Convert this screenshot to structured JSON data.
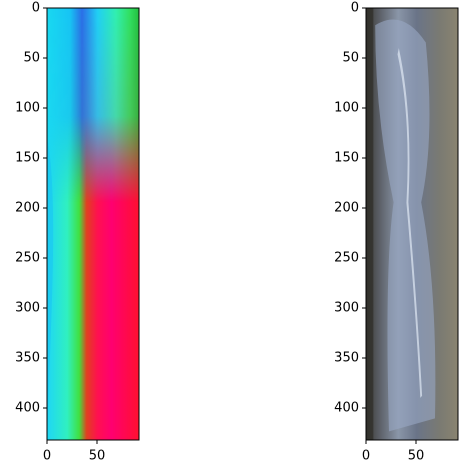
{
  "chart_data": [
    {
      "type": "image",
      "xlim": [
        0,
        92
      ],
      "ylim": [
        432,
        0
      ],
      "xticks": [
        0,
        50
      ],
      "yticks": [
        0,
        50,
        100,
        150,
        200,
        250,
        300,
        350,
        400
      ]
    },
    {
      "type": "image",
      "xlim": [
        0,
        92
      ],
      "ylim": [
        432,
        0
      ],
      "xticks": [
        0,
        50
      ],
      "yticks": [
        0,
        50,
        100,
        150,
        200,
        250,
        300,
        350,
        400
      ]
    }
  ]
}
